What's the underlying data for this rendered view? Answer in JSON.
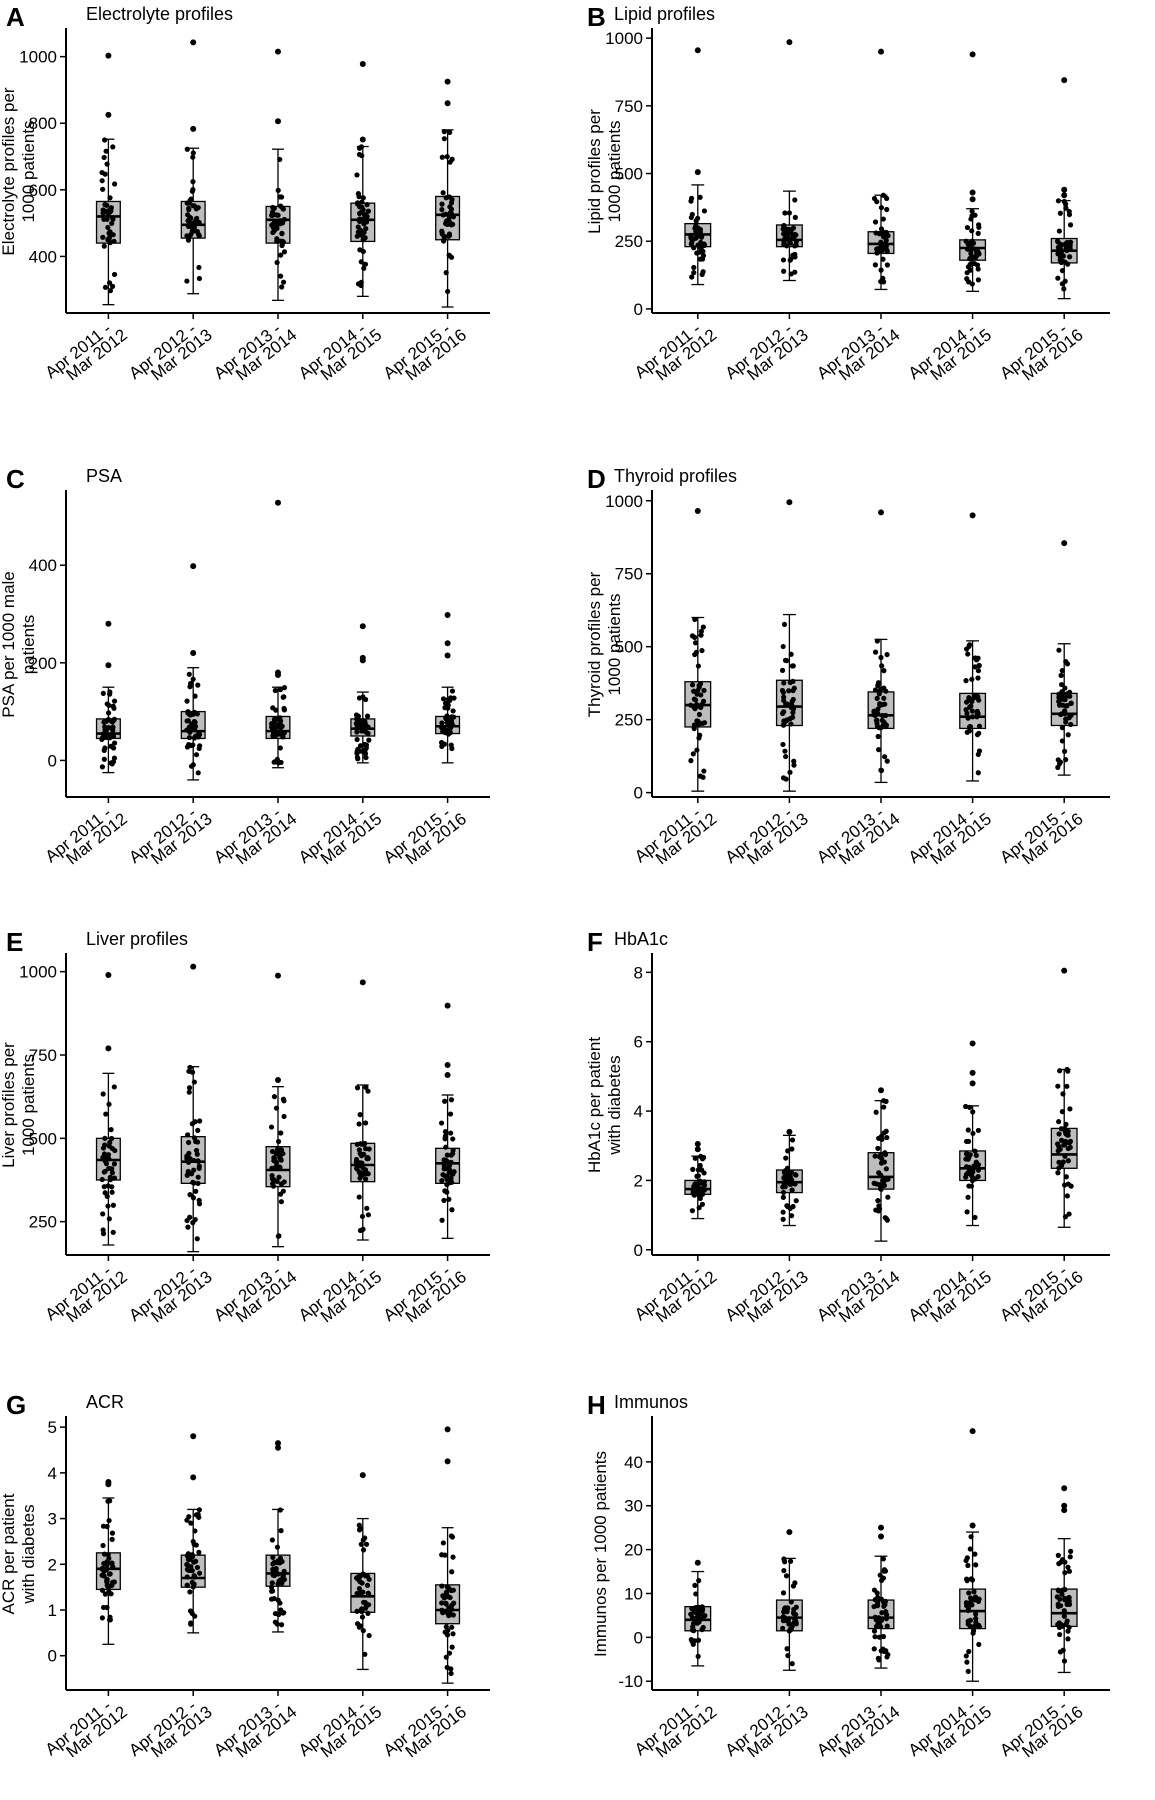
{
  "chart_data": [
    {
      "letter": "A",
      "title": "Electrolyte profiles",
      "type": "box",
      "ylabel": [
        "Electrolyte profiles per",
        "1000 patients"
      ],
      "categories": [
        [
          "Apr 2011 -",
          "Mar 2012"
        ],
        [
          "Apr 2012 -",
          "Mar 2013"
        ],
        [
          "Apr 2013 -",
          "Mar 2014"
        ],
        [
          "Apr 2014 -",
          "Mar 2015"
        ],
        [
          "Apr 2015 -",
          "Mar 2016"
        ]
      ],
      "ylim": [
        230,
        1080
      ],
      "yticks": [
        400,
        600,
        800,
        1000
      ],
      "boxes": [
        {
          "whisker_low": 255,
          "q1": 440,
          "median": 520,
          "q3": 565,
          "whisker_high": 752,
          "outliers": [
            825,
            1003
          ]
        },
        {
          "whisker_low": 288,
          "q1": 455,
          "median": 495,
          "q3": 565,
          "whisker_high": 725,
          "outliers": [
            783,
            1043
          ]
        },
        {
          "whisker_low": 268,
          "q1": 440,
          "median": 510,
          "q3": 550,
          "whisker_high": 722,
          "outliers": [
            806,
            1015
          ]
        },
        {
          "whisker_low": 280,
          "q1": 445,
          "median": 510,
          "q3": 560,
          "whisker_high": 730,
          "outliers": [
            751,
            978
          ]
        },
        {
          "whisker_low": 248,
          "q1": 450,
          "median": 525,
          "q3": 580,
          "whisker_high": 780,
          "outliers": [
            860,
            925
          ]
        }
      ]
    },
    {
      "letter": "B",
      "title": "Lipid profiles",
      "type": "box",
      "ylabel": [
        "Lipid profiles per",
        "1000 patients"
      ],
      "categories": [
        [
          "Apr 2011 -",
          "Mar 2012"
        ],
        [
          "Apr 2012 -",
          "Mar 2013"
        ],
        [
          "Apr 2013 -",
          "Mar 2014"
        ],
        [
          "Apr 2014 -",
          "Mar 2015"
        ],
        [
          "Apr 2015 -",
          "Mar 2016"
        ]
      ],
      "ylim": [
        -15,
        1030
      ],
      "yticks": [
        0,
        250,
        500,
        750,
        1000
      ],
      "boxes": [
        {
          "whisker_low": 90,
          "q1": 230,
          "median": 275,
          "q3": 315,
          "whisker_high": 458,
          "outliers": [
            505,
            955
          ]
        },
        {
          "whisker_low": 105,
          "q1": 230,
          "median": 255,
          "q3": 310,
          "whisker_high": 435,
          "outliers": [
            985
          ]
        },
        {
          "whisker_low": 72,
          "q1": 205,
          "median": 240,
          "q3": 285,
          "whisker_high": 420,
          "outliers": [
            950
          ]
        },
        {
          "whisker_low": 65,
          "q1": 180,
          "median": 225,
          "q3": 255,
          "whisker_high": 370,
          "outliers": [
            405,
            430,
            940
          ]
        },
        {
          "whisker_low": 38,
          "q1": 170,
          "median": 215,
          "q3": 260,
          "whisker_high": 400,
          "outliers": [
            420,
            440,
            845
          ]
        }
      ]
    },
    {
      "letter": "C",
      "title": "PSA",
      "type": "box",
      "ylabel": [
        "PSA per 1000 male",
        "patients"
      ],
      "categories": [
        [
          "Apr 2011 -",
          "Mar 2012"
        ],
        [
          "Apr 2012 -",
          "Mar 2013"
        ],
        [
          "Apr 2013 -",
          "Mar 2014"
        ],
        [
          "Apr 2014 -",
          "Mar 2015"
        ],
        [
          "Apr 2015 -",
          "Mar 2016"
        ]
      ],
      "ylim": [
        -75,
        550
      ],
      "yticks": [
        0,
        200,
        400
      ],
      "boxes": [
        {
          "whisker_low": -25,
          "q1": 45,
          "median": 55,
          "q3": 85,
          "whisker_high": 150,
          "outliers": [
            195,
            280
          ]
        },
        {
          "whisker_low": -40,
          "q1": 45,
          "median": 60,
          "q3": 100,
          "whisker_high": 190,
          "outliers": [
            220,
            398
          ]
        },
        {
          "whisker_low": -15,
          "q1": 45,
          "median": 60,
          "q3": 90,
          "whisker_high": 150,
          "outliers": [
            175,
            180,
            528
          ]
        },
        {
          "whisker_low": -5,
          "q1": 50,
          "median": 65,
          "q3": 85,
          "whisker_high": 140,
          "outliers": [
            205,
            210,
            275
          ]
        },
        {
          "whisker_low": -5,
          "q1": 55,
          "median": 70,
          "q3": 90,
          "whisker_high": 150,
          "outliers": [
            215,
            240,
            298
          ]
        }
      ]
    },
    {
      "letter": "D",
      "title": "Thyroid profiles",
      "type": "box",
      "ylabel": [
        "Thyroid profiles per",
        "1000 patients"
      ],
      "categories": [
        [
          "Apr 2011 -",
          "Mar 2012"
        ],
        [
          "Apr 2012 -",
          "Mar 2013"
        ],
        [
          "Apr 2013 -",
          "Mar 2014"
        ],
        [
          "Apr 2014 -",
          "Mar 2015"
        ],
        [
          "Apr 2015 -",
          "Mar 2016"
        ]
      ],
      "ylim": [
        -15,
        1030
      ],
      "yticks": [
        0,
        250,
        500,
        750,
        1000
      ],
      "boxes": [
        {
          "whisker_low": 5,
          "q1": 225,
          "median": 300,
          "q3": 380,
          "whisker_high": 600,
          "outliers": [
            965
          ]
        },
        {
          "whisker_low": 5,
          "q1": 230,
          "median": 295,
          "q3": 385,
          "whisker_high": 610,
          "outliers": [
            995
          ]
        },
        {
          "whisker_low": 35,
          "q1": 220,
          "median": 265,
          "q3": 345,
          "whisker_high": 525,
          "outliers": [
            960
          ]
        },
        {
          "whisker_low": 40,
          "q1": 220,
          "median": 260,
          "q3": 340,
          "whisker_high": 520,
          "outliers": [
            950
          ]
        },
        {
          "whisker_low": 60,
          "q1": 230,
          "median": 270,
          "q3": 340,
          "whisker_high": 510,
          "outliers": [
            855
          ]
        }
      ]
    },
    {
      "letter": "E",
      "title": "Liver profiles",
      "type": "box",
      "ylabel": [
        "Liver profiles per",
        "1000 patients"
      ],
      "categories": [
        [
          "Apr 2011 -",
          "Mar 2012"
        ],
        [
          "Apr 2012 -",
          "Mar 2013"
        ],
        [
          "Apr 2013 -",
          "Mar 2014"
        ],
        [
          "Apr 2014 -",
          "Mar 2015"
        ],
        [
          "Apr 2015 -",
          "Mar 2016"
        ]
      ],
      "ylim": [
        150,
        1050
      ],
      "yticks": [
        250,
        500,
        750,
        1000
      ],
      "boxes": [
        {
          "whisker_low": 180,
          "q1": 375,
          "median": 435,
          "q3": 500,
          "whisker_high": 695,
          "outliers": [
            770,
            990
          ]
        },
        {
          "whisker_low": 160,
          "q1": 365,
          "median": 430,
          "q3": 505,
          "whisker_high": 715,
          "outliers": [
            1015
          ]
        },
        {
          "whisker_low": 175,
          "q1": 355,
          "median": 405,
          "q3": 475,
          "whisker_high": 655,
          "outliers": [
            675,
            988
          ]
        },
        {
          "whisker_low": 195,
          "q1": 370,
          "median": 420,
          "q3": 485,
          "whisker_high": 660,
          "outliers": [
            968
          ]
        },
        {
          "whisker_low": 200,
          "q1": 365,
          "median": 425,
          "q3": 470,
          "whisker_high": 630,
          "outliers": [
            690,
            720,
            898
          ]
        }
      ]
    },
    {
      "letter": "F",
      "title": "HbA1c",
      "type": "box",
      "ylabel": [
        "HbA1c per patient",
        "with diabetes"
      ],
      "categories": [
        [
          "Apr 2011 -",
          "Mar 2012"
        ],
        [
          "Apr 2012 -",
          "Mar 2013"
        ],
        [
          "Apr 2013 -",
          "Mar 2014"
        ],
        [
          "Apr 2014 -",
          "Mar 2015"
        ],
        [
          "Apr 2015 -",
          "Mar 2016"
        ]
      ],
      "ylim": [
        -0.15,
        8.5
      ],
      "yticks": [
        0,
        2,
        4,
        6,
        8
      ],
      "boxes": [
        {
          "whisker_low": 0.9,
          "q1": 1.6,
          "median": 1.75,
          "q3": 2.0,
          "whisker_high": 2.7,
          "outliers": [
            2.9,
            3.05
          ]
        },
        {
          "whisker_low": 0.7,
          "q1": 1.65,
          "median": 1.95,
          "q3": 2.3,
          "whisker_high": 3.3,
          "outliers": [
            3.4
          ]
        },
        {
          "whisker_low": 0.25,
          "q1": 1.75,
          "median": 2.1,
          "q3": 2.8,
          "whisker_high": 4.3,
          "outliers": [
            4.6
          ]
        },
        {
          "whisker_low": 0.7,
          "q1": 2.0,
          "median": 2.35,
          "q3": 2.85,
          "whisker_high": 4.15,
          "outliers": [
            4.8,
            5.1,
            5.95
          ]
        },
        {
          "whisker_low": 0.65,
          "q1": 2.35,
          "median": 2.75,
          "q3": 3.5,
          "whisker_high": 5.2,
          "outliers": [
            8.05
          ]
        }
      ]
    },
    {
      "letter": "G",
      "title": "ACR",
      "type": "box",
      "ylabel": [
        "ACR per patient",
        "with diabetes"
      ],
      "categories": [
        [
          "Apr 2011 -",
          "Mar 2012"
        ],
        [
          "Apr 2012 -",
          "Mar 2013"
        ],
        [
          "Apr 2013 -",
          "Mar 2014"
        ],
        [
          "Apr 2014 -",
          "Mar 2015"
        ],
        [
          "Apr 2015 -",
          "Mar 2016"
        ]
      ],
      "ylim": [
        -0.75,
        5.2
      ],
      "yticks": [
        0,
        1,
        2,
        3,
        4,
        5
      ],
      "boxes": [
        {
          "whisker_low": 0.25,
          "q1": 1.45,
          "median": 1.9,
          "q3": 2.25,
          "whisker_high": 3.45,
          "outliers": [
            3.75,
            3.8
          ]
        },
        {
          "whisker_low": 0.5,
          "q1": 1.5,
          "median": 1.7,
          "q3": 2.2,
          "whisker_high": 3.2,
          "outliers": [
            3.9,
            4.8
          ]
        },
        {
          "whisker_low": 0.52,
          "q1": 1.52,
          "median": 1.8,
          "q3": 2.2,
          "whisker_high": 3.2,
          "outliers": [
            4.55,
            4.65
          ]
        },
        {
          "whisker_low": -0.3,
          "q1": 0.95,
          "median": 1.3,
          "q3": 1.8,
          "whisker_high": 3.0,
          "outliers": [
            3.95
          ]
        },
        {
          "whisker_low": -0.6,
          "q1": 0.7,
          "median": 1.0,
          "q3": 1.55,
          "whisker_high": 2.8,
          "outliers": [
            4.25,
            4.95
          ]
        }
      ]
    },
    {
      "letter": "H",
      "title": "Immunos",
      "type": "box",
      "ylabel": [
        "Immunos per 1000 patients"
      ],
      "categories": [
        [
          "Apr 2011 -",
          "Mar 2012"
        ],
        [
          "Apr 2012 -",
          "Mar 2013"
        ],
        [
          "Apr 2013 -",
          "Mar 2014"
        ],
        [
          "Apr 2014 -",
          "Mar 2015"
        ],
        [
          "Apr 2015 -",
          "Mar 2016"
        ]
      ],
      "ylim": [
        -12,
        50
      ],
      "yticks": [
        -10,
        0,
        10,
        20,
        30,
        40
      ],
      "boxes": [
        {
          "whisker_low": -6.5,
          "q1": 1.5,
          "median": 4.0,
          "q3": 7.0,
          "whisker_high": 15.0,
          "outliers": [
            17.0
          ]
        },
        {
          "whisker_low": -7.5,
          "q1": 1.5,
          "median": 4.5,
          "q3": 8.5,
          "whisker_high": 18.0,
          "outliers": [
            24.0
          ]
        },
        {
          "whisker_low": -7.0,
          "q1": 2.0,
          "median": 4.5,
          "q3": 8.5,
          "whisker_high": 18.5,
          "outliers": [
            23.0,
            25.0
          ]
        },
        {
          "whisker_low": -10.0,
          "q1": 2.0,
          "median": 6.0,
          "q3": 11.0,
          "whisker_high": 24.0,
          "outliers": [
            25.5,
            47.0
          ]
        },
        {
          "whisker_low": -8.0,
          "q1": 2.5,
          "median": 5.5,
          "q3": 11.0,
          "whisker_high": 22.5,
          "outliers": [
            29.0,
            30.0,
            34.0
          ]
        }
      ]
    }
  ]
}
